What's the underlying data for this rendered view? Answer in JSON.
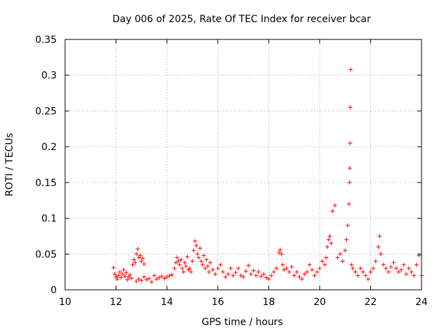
{
  "chart_data": {
    "type": "scatter",
    "title": "Day 006 of 2025, Rate Of TEC Index for receiver bcar",
    "xlabel": "GPS time / hours",
    "ylabel": "ROTI / TECUs",
    "xlim": [
      10,
      24
    ],
    "ylim": [
      0,
      0.35
    ],
    "x_ticks": [
      "10",
      "12",
      "14",
      "16",
      "18",
      "20",
      "22",
      "24"
    ],
    "y_ticks": [
      "0",
      "0.05",
      "0.1",
      "0.15",
      "0.2",
      "0.25",
      "0.3",
      "0.35"
    ],
    "grid": true,
    "series": [
      {
        "color": "#ff0000",
        "marker": "plus",
        "points": [
          [
            11.9,
            0.031
          ],
          [
            11.95,
            0.022
          ],
          [
            12.0,
            0.018
          ],
          [
            12.05,
            0.015
          ],
          [
            12.1,
            0.02
          ],
          [
            12.15,
            0.025
          ],
          [
            12.2,
            0.017
          ],
          [
            12.25,
            0.022
          ],
          [
            12.3,
            0.028
          ],
          [
            12.35,
            0.019
          ],
          [
            12.4,
            0.024
          ],
          [
            12.45,
            0.014
          ],
          [
            12.5,
            0.018
          ],
          [
            12.55,
            0.021
          ],
          [
            12.6,
            0.016
          ],
          [
            12.65,
            0.035
          ],
          [
            12.7,
            0.042
          ],
          [
            12.75,
            0.038
          ],
          [
            12.8,
            0.05
          ],
          [
            12.85,
            0.057
          ],
          [
            12.9,
            0.045
          ],
          [
            12.95,
            0.048
          ],
          [
            13.0,
            0.04
          ],
          [
            13.05,
            0.044
          ],
          [
            13.1,
            0.036
          ],
          [
            12.8,
            0.012
          ],
          [
            12.9,
            0.015
          ],
          [
            13.0,
            0.013
          ],
          [
            13.1,
            0.018
          ],
          [
            13.2,
            0.014
          ],
          [
            13.3,
            0.016
          ],
          [
            13.4,
            0.011
          ],
          [
            13.5,
            0.02
          ],
          [
            13.6,
            0.015
          ],
          [
            13.7,
            0.017
          ],
          [
            13.8,
            0.019
          ],
          [
            13.9,
            0.016
          ],
          [
            14.0,
            0.018
          ],
          [
            14.1,
            0.02
          ],
          [
            14.2,
            0.021
          ],
          [
            14.3,
            0.03
          ],
          [
            14.35,
            0.038
          ],
          [
            14.4,
            0.045
          ],
          [
            14.45,
            0.04
          ],
          [
            14.5,
            0.035
          ],
          [
            14.55,
            0.042
          ],
          [
            14.6,
            0.03
          ],
          [
            14.65,
            0.025
          ],
          [
            14.7,
            0.038
          ],
          [
            14.75,
            0.033
          ],
          [
            14.8,
            0.046
          ],
          [
            14.85,
            0.028
          ],
          [
            14.9,
            0.03
          ],
          [
            14.95,
            0.025
          ],
          [
            15.0,
            0.04
          ],
          [
            15.05,
            0.055
          ],
          [
            15.1,
            0.068
          ],
          [
            15.15,
            0.062
          ],
          [
            15.2,
            0.05
          ],
          [
            15.25,
            0.045
          ],
          [
            15.3,
            0.058
          ],
          [
            15.35,
            0.04
          ],
          [
            15.4,
            0.035
          ],
          [
            15.45,
            0.048
          ],
          [
            15.5,
            0.03
          ],
          [
            15.55,
            0.042
          ],
          [
            15.6,
            0.033
          ],
          [
            15.65,
            0.025
          ],
          [
            15.7,
            0.038
          ],
          [
            15.8,
            0.028
          ],
          [
            15.9,
            0.022
          ],
          [
            16.0,
            0.03
          ],
          [
            16.1,
            0.035
          ],
          [
            16.2,
            0.025
          ],
          [
            16.3,
            0.018
          ],
          [
            16.4,
            0.022
          ],
          [
            16.5,
            0.03
          ],
          [
            16.6,
            0.02
          ],
          [
            16.7,
            0.024
          ],
          [
            16.8,
            0.03
          ],
          [
            16.9,
            0.02
          ],
          [
            17.0,
            0.018
          ],
          [
            17.1,
            0.026
          ],
          [
            17.2,
            0.034
          ],
          [
            17.3,
            0.022
          ],
          [
            17.4,
            0.027
          ],
          [
            17.5,
            0.02
          ],
          [
            17.6,
            0.025
          ],
          [
            17.7,
            0.019
          ],
          [
            17.8,
            0.022
          ],
          [
            17.9,
            0.017
          ],
          [
            18.0,
            0.015
          ],
          [
            18.1,
            0.02
          ],
          [
            18.2,
            0.025
          ],
          [
            18.3,
            0.03
          ],
          [
            18.4,
            0.052
          ],
          [
            18.45,
            0.056
          ],
          [
            18.5,
            0.05
          ],
          [
            18.55,
            0.035
          ],
          [
            18.6,
            0.028
          ],
          [
            18.7,
            0.03
          ],
          [
            18.8,
            0.025
          ],
          [
            18.9,
            0.032
          ],
          [
            19.0,
            0.02
          ],
          [
            19.1,
            0.025
          ],
          [
            19.2,
            0.018
          ],
          [
            19.3,
            0.015
          ],
          [
            19.4,
            0.022
          ],
          [
            19.5,
            0.025
          ],
          [
            19.6,
            0.035
          ],
          [
            19.7,
            0.028
          ],
          [
            19.8,
            0.02
          ],
          [
            19.9,
            0.025
          ],
          [
            20.0,
            0.03
          ],
          [
            20.1,
            0.04
          ],
          [
            20.2,
            0.035
          ],
          [
            20.25,
            0.045
          ],
          [
            20.3,
            0.06
          ],
          [
            20.35,
            0.07
          ],
          [
            20.4,
            0.075
          ],
          [
            20.45,
            0.065
          ],
          [
            20.5,
            0.11
          ],
          [
            20.6,
            0.118
          ],
          [
            20.7,
            0.045
          ],
          [
            20.8,
            0.05
          ],
          [
            20.9,
            0.04
          ],
          [
            21.0,
            0.055
          ],
          [
            21.05,
            0.07
          ],
          [
            21.1,
            0.09
          ],
          [
            21.15,
            0.12
          ],
          [
            21.17,
            0.15
          ],
          [
            21.18,
            0.17
          ],
          [
            21.19,
            0.205
          ],
          [
            21.2,
            0.255
          ],
          [
            21.22,
            0.308
          ],
          [
            21.25,
            0.035
          ],
          [
            21.3,
            0.03
          ],
          [
            21.4,
            0.025
          ],
          [
            21.5,
            0.02
          ],
          [
            21.6,
            0.03
          ],
          [
            21.7,
            0.025
          ],
          [
            21.8,
            0.02
          ],
          [
            21.9,
            0.015
          ],
          [
            22.0,
            0.025
          ],
          [
            22.1,
            0.03
          ],
          [
            22.2,
            0.04
          ],
          [
            22.3,
            0.06
          ],
          [
            22.35,
            0.075
          ],
          [
            22.4,
            0.05
          ],
          [
            22.5,
            0.035
          ],
          [
            22.6,
            0.03
          ],
          [
            22.7,
            0.025
          ],
          [
            22.8,
            0.032
          ],
          [
            22.9,
            0.038
          ],
          [
            23.0,
            0.03
          ],
          [
            23.1,
            0.025
          ],
          [
            23.2,
            0.028
          ],
          [
            23.3,
            0.035
          ],
          [
            23.4,
            0.022
          ],
          [
            23.5,
            0.03
          ],
          [
            23.6,
            0.025
          ],
          [
            23.7,
            0.02
          ],
          [
            23.8,
            0.035
          ],
          [
            23.9,
            0.048
          ],
          [
            24.0,
            0.02
          ]
        ]
      }
    ]
  }
}
